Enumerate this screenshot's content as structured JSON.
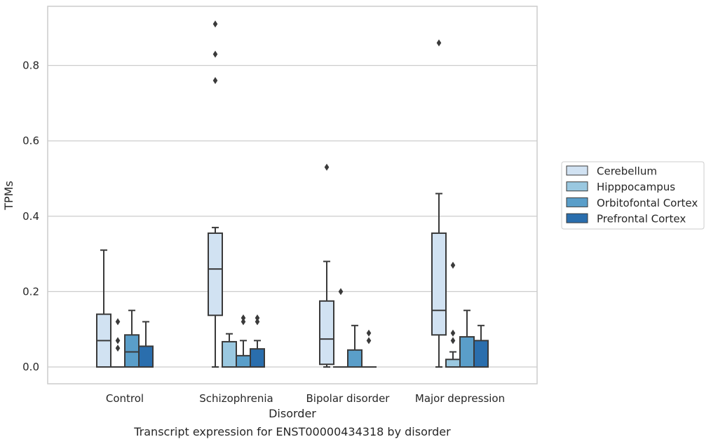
{
  "chart_data": {
    "type": "box",
    "caption": "Transcript expression for ENST00000434318 by disorder",
    "xlabel": "Disorder",
    "ylabel": "TPMs",
    "ylim": [
      -0.045,
      0.96
    ],
    "yticks": [
      "0.0",
      "0.2",
      "0.4",
      "0.6",
      "0.8"
    ],
    "ytick_values": [
      0.0,
      0.2,
      0.4,
      0.6,
      0.8
    ],
    "grid": "horizontal",
    "legend_position": "right",
    "categories": [
      "Control",
      "Schizophrenia",
      "Bipolar disorder",
      "Major depression"
    ],
    "series": [
      {
        "name": "Cerebellum",
        "color": "#d1e2f2",
        "boxes": [
          {
            "q1": 0.0,
            "median": 0.07,
            "q3": 0.14,
            "whisker_low": 0.0,
            "whisker_high": 0.31,
            "outliers": []
          },
          {
            "q1": 0.137,
            "median": 0.26,
            "q3": 0.355,
            "whisker_low": 0.0,
            "whisker_high": 0.37,
            "outliers": [
              0.91,
              0.83,
              0.76
            ]
          },
          {
            "q1": 0.007,
            "median": 0.074,
            "q3": 0.175,
            "whisker_low": 0.0,
            "whisker_high": 0.28,
            "outliers": [
              0.53
            ]
          },
          {
            "q1": 0.085,
            "median": 0.15,
            "q3": 0.355,
            "whisker_low": 0.0,
            "whisker_high": 0.46,
            "outliers": [
              0.86
            ]
          }
        ]
      },
      {
        "name": "Hipppocampus",
        "color": "#9ac8e0",
        "boxes": [
          {
            "q1": 0.0,
            "median": 0.0,
            "q3": 0.0,
            "whisker_low": 0.0,
            "whisker_high": 0.0,
            "outliers": [
              0.12,
              0.07,
              0.05
            ]
          },
          {
            "q1": 0.0,
            "median": 0.0,
            "q3": 0.067,
            "whisker_low": 0.0,
            "whisker_high": 0.088,
            "outliers": []
          },
          {
            "q1": 0.0,
            "median": 0.0,
            "q3": 0.0,
            "whisker_low": 0.0,
            "whisker_high": 0.0,
            "outliers": [
              0.2
            ]
          },
          {
            "q1": 0.0,
            "median": 0.0,
            "q3": 0.02,
            "whisker_low": 0.0,
            "whisker_high": 0.04,
            "outliers": [
              0.27,
              0.09,
              0.07
            ]
          }
        ]
      },
      {
        "name": "Orbitofontal Cortex",
        "color": "#5a9ec9",
        "boxes": [
          {
            "q1": 0.0,
            "median": 0.04,
            "q3": 0.085,
            "whisker_low": 0.0,
            "whisker_high": 0.15,
            "outliers": []
          },
          {
            "q1": 0.0,
            "median": 0.0,
            "q3": 0.03,
            "whisker_low": 0.0,
            "whisker_high": 0.07,
            "outliers": [
              0.13,
              0.12
            ]
          },
          {
            "q1": 0.0,
            "median": 0.0,
            "q3": 0.045,
            "whisker_low": 0.0,
            "whisker_high": 0.11,
            "outliers": []
          },
          {
            "q1": 0.0,
            "median": 0.0,
            "q3": 0.08,
            "whisker_low": 0.0,
            "whisker_high": 0.15,
            "outliers": []
          }
        ]
      },
      {
        "name": "Prefrontal Cortex",
        "color": "#2a6ead",
        "boxes": [
          {
            "q1": 0.0,
            "median": 0.0,
            "q3": 0.055,
            "whisker_low": 0.0,
            "whisker_high": 0.12,
            "outliers": []
          },
          {
            "q1": 0.0,
            "median": 0.0,
            "q3": 0.048,
            "whisker_low": 0.0,
            "whisker_high": 0.07,
            "outliers": [
              0.13,
              0.12
            ]
          },
          {
            "q1": 0.0,
            "median": 0.0,
            "q3": 0.0,
            "whisker_low": 0.0,
            "whisker_high": 0.0,
            "outliers": [
              0.09,
              0.07
            ]
          },
          {
            "q1": 0.0,
            "median": 0.0,
            "q3": 0.07,
            "whisker_low": 0.0,
            "whisker_high": 0.11,
            "outliers": []
          }
        ]
      }
    ]
  }
}
